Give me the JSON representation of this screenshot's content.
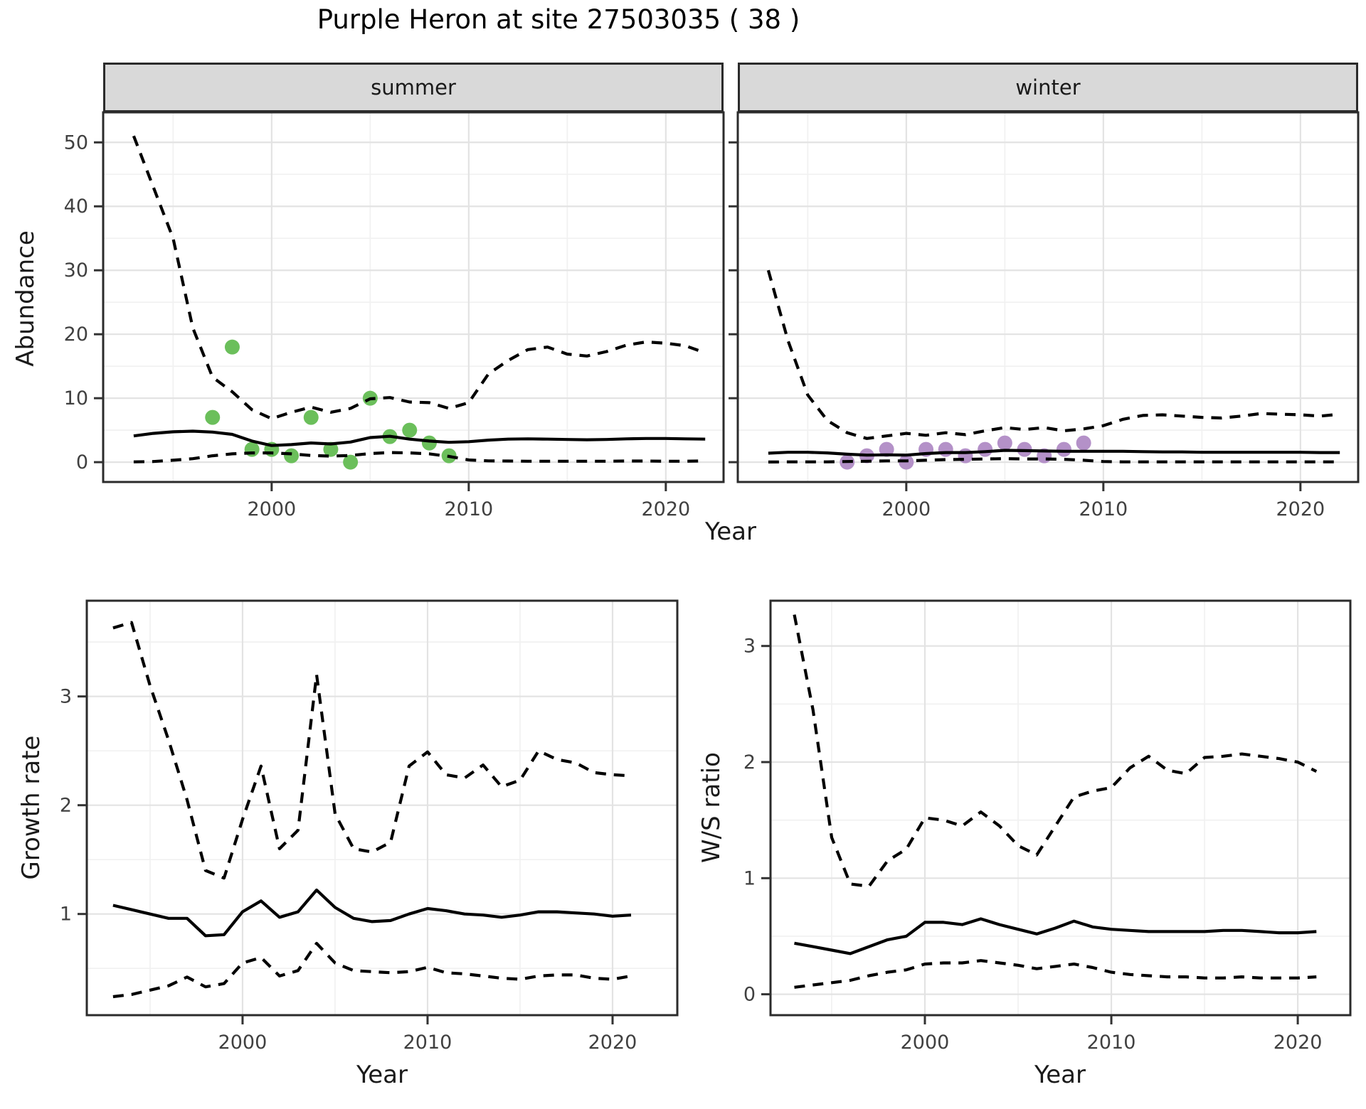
{
  "title": "Purple Heron at site 27503035 ( 38 )",
  "facets": [
    {
      "label": "summer"
    },
    {
      "label": "winter"
    }
  ],
  "axis_titles": {
    "abundance": "Abundance",
    "year": "Year",
    "growth_rate": "Growth rate",
    "ws_ratio": "W/S ratio"
  },
  "colors": {
    "summer_points": "#6bbf5b",
    "winter_points": "#b491c8",
    "line": "#000000",
    "panel_border": "#2b2b2b",
    "tick_mark": "#333333",
    "tick_text": "#404040",
    "grid_major": "#e3e3e3",
    "grid_minor": "#f1f1f1",
    "strip_fill": "#d9d9d9",
    "background": "#ffffff"
  },
  "chart_data": [
    {
      "id": "abundance_summer",
      "type": "line",
      "facet": "summer",
      "xlabel": "Year",
      "ylabel": "Abundance",
      "xlim": [
        1991.45,
        2022.93
      ],
      "ylim": [
        -3.1,
        54.7
      ],
      "xticks": [
        2000,
        2010,
        2020
      ],
      "xticks_minor": [
        1995,
        2005,
        2015
      ],
      "yticks": [
        0,
        10,
        20,
        30,
        40,
        50
      ],
      "yticks_minor": [
        5,
        15,
        25,
        35,
        45
      ],
      "grid": true,
      "legend": "none",
      "years": [
        1993,
        1994,
        1995,
        1996,
        1997,
        1998,
        1999,
        2000,
        2001,
        2002,
        2003,
        2004,
        2005,
        2006,
        2007,
        2008,
        2009,
        2010,
        2011,
        2012,
        2013,
        2014,
        2015,
        2016,
        2017,
        2018,
        2019,
        2020,
        2021,
        2022
      ],
      "series": [
        {
          "name": "upper_95ci",
          "style": "dashed",
          "values": [
            51,
            43,
            35,
            21,
            13.3,
            11,
            8.2,
            6.8,
            7.8,
            8.6,
            7.8,
            8.4,
            9.9,
            10.1,
            9.4,
            9.3,
            8.4,
            9.3,
            13.8,
            15.9,
            17.6,
            18,
            16.9,
            16.6,
            17.3,
            18.3,
            18.8,
            18.6,
            18.2,
            17.1
          ]
        },
        {
          "name": "median",
          "style": "solid",
          "values": [
            4.1,
            4.5,
            4.75,
            4.85,
            4.7,
            4.35,
            3.3,
            2.6,
            2.75,
            3.0,
            2.85,
            3.15,
            3.85,
            4.05,
            3.6,
            3.3,
            3.1,
            3.2,
            3.45,
            3.6,
            3.65,
            3.6,
            3.55,
            3.5,
            3.55,
            3.65,
            3.7,
            3.7,
            3.65,
            3.6
          ]
        },
        {
          "name": "lower_95ci",
          "style": "dashed",
          "values": [
            0.05,
            0.1,
            0.3,
            0.55,
            1.0,
            1.3,
            1.45,
            1.45,
            1.3,
            1.05,
            0.95,
            1.05,
            1.35,
            1.5,
            1.45,
            1.3,
            0.9,
            0.35,
            0.2,
            0.18,
            0.15,
            0.15,
            0.15,
            0.15,
            0.15,
            0.18,
            0.18,
            0.15,
            0.15,
            0.2
          ]
        }
      ],
      "points": {
        "name": "observed_summer_counts",
        "color": "#6bbf5b",
        "years": [
          1997,
          1998,
          1999,
          2000,
          2001,
          2002,
          2003,
          2004,
          2005,
          2006,
          2007,
          2008,
          2009
        ],
        "values": [
          7,
          18,
          2,
          2,
          1,
          7,
          2,
          0,
          10,
          4,
          5,
          3,
          1
        ]
      }
    },
    {
      "id": "abundance_winter",
      "type": "line",
      "facet": "winter",
      "xlabel": "Year",
      "ylabel": "Abundance",
      "xlim": [
        1991.45,
        2022.93
      ],
      "ylim": [
        -3.1,
        54.7
      ],
      "xticks": [
        2000,
        2010,
        2020
      ],
      "xticks_minor": [
        1995,
        2005,
        2015
      ],
      "yticks": [
        0,
        10,
        20,
        30,
        40,
        50
      ],
      "yticks_minor": [
        5,
        15,
        25,
        35,
        45
      ],
      "grid": true,
      "legend": "none",
      "show_y_labels": false,
      "years": [
        1993,
        1994,
        1995,
        1996,
        1997,
        1998,
        1999,
        2000,
        2001,
        2002,
        2003,
        2004,
        2005,
        2006,
        2007,
        2008,
        2009,
        2010,
        2011,
        2012,
        2013,
        2014,
        2015,
        2016,
        2017,
        2018,
        2019,
        2020,
        2021,
        2022
      ],
      "series": [
        {
          "name": "upper_95ci",
          "style": "dashed",
          "values": [
            30,
            19,
            10.5,
            6.5,
            4.6,
            3.7,
            4.1,
            4.5,
            4.2,
            4.6,
            4.3,
            4.9,
            5.4,
            5.1,
            5.4,
            4.9,
            5.2,
            5.7,
            6.7,
            7.3,
            7.4,
            7.2,
            7.0,
            6.9,
            7.2,
            7.6,
            7.5,
            7.4,
            7.2,
            7.5
          ]
        },
        {
          "name": "median",
          "style": "solid",
          "values": [
            1.4,
            1.55,
            1.55,
            1.45,
            1.25,
            1.1,
            1.15,
            1.1,
            1.35,
            1.5,
            1.5,
            1.65,
            1.85,
            1.8,
            1.75,
            1.7,
            1.7,
            1.7,
            1.7,
            1.65,
            1.6,
            1.6,
            1.55,
            1.55,
            1.55,
            1.55,
            1.55,
            1.55,
            1.5,
            1.5
          ]
        },
        {
          "name": "lower_95ci",
          "style": "dashed",
          "values": [
            0.02,
            0.05,
            0.05,
            0.05,
            0.1,
            0.15,
            0.2,
            0.2,
            0.3,
            0.4,
            0.45,
            0.5,
            0.55,
            0.5,
            0.5,
            0.45,
            0.3,
            0.1,
            0.05,
            0.05,
            0.05,
            0.05,
            0.05,
            0.05,
            0.05,
            0.05,
            0.05,
            0.05,
            0.05,
            0.05
          ]
        }
      ],
      "points": {
        "name": "observed_winter_counts",
        "color": "#b491c8",
        "years": [
          1997,
          1998,
          1999,
          2000,
          2001,
          2002,
          2003,
          2004,
          2005,
          2006,
          2007,
          2008,
          2009
        ],
        "values": [
          0,
          1,
          2,
          0,
          2,
          2,
          1,
          2,
          3,
          2,
          1,
          2,
          3
        ]
      }
    },
    {
      "id": "growth_rate",
      "type": "line",
      "xlabel": "Year",
      "ylabel": "Growth rate",
      "xlim": [
        1991.58,
        2023.5
      ],
      "ylim": [
        0.07,
        3.88
      ],
      "xticks": [
        2000,
        2010,
        2020
      ],
      "xticks_minor": [
        1995,
        2005,
        2015
      ],
      "yticks": [
        1,
        2,
        3
      ],
      "yticks_minor": [
        0.5,
        1.5,
        2.5,
        3.5
      ],
      "grid": true,
      "legend": "none",
      "years": [
        1993,
        1994,
        1995,
        1996,
        1997,
        1998,
        1999,
        2000,
        2001,
        2002,
        2003,
        2004,
        2005,
        2006,
        2007,
        2008,
        2009,
        2010,
        2011,
        2012,
        2013,
        2014,
        2015,
        2016,
        2017,
        2018,
        2019,
        2020,
        2021
      ],
      "series": [
        {
          "name": "upper_95ci",
          "style": "dashed",
          "values": [
            3.63,
            3.68,
            3.1,
            2.6,
            2.05,
            1.4,
            1.33,
            1.87,
            2.36,
            1.6,
            1.77,
            3.2,
            1.92,
            1.6,
            1.57,
            1.66,
            2.36,
            2.49,
            2.28,
            2.25,
            2.37,
            2.17,
            2.23,
            2.5,
            2.42,
            2.39,
            2.3,
            2.28,
            2.27
          ]
        },
        {
          "name": "median",
          "style": "solid",
          "values": [
            1.08,
            1.04,
            1.0,
            0.96,
            0.96,
            0.8,
            0.81,
            1.02,
            1.12,
            0.97,
            1.02,
            1.22,
            1.06,
            0.96,
            0.93,
            0.94,
            1.0,
            1.05,
            1.03,
            1.0,
            0.99,
            0.97,
            0.99,
            1.02,
            1.02,
            1.01,
            1.0,
            0.98,
            0.99
          ]
        },
        {
          "name": "lower_95ci",
          "style": "dashed",
          "values": [
            0.24,
            0.26,
            0.3,
            0.34,
            0.42,
            0.33,
            0.36,
            0.55,
            0.6,
            0.43,
            0.48,
            0.73,
            0.55,
            0.48,
            0.47,
            0.46,
            0.47,
            0.51,
            0.46,
            0.45,
            0.43,
            0.41,
            0.4,
            0.43,
            0.44,
            0.44,
            0.41,
            0.4,
            0.43
          ]
        }
      ]
    },
    {
      "id": "ws_ratio",
      "type": "line",
      "xlabel": "Year",
      "ylabel": "W/S ratio",
      "xlim": [
        1991.72,
        2022.82
      ],
      "ylim": [
        -0.18,
        3.39
      ],
      "xticks": [
        2000,
        2010,
        2020
      ],
      "xticks_minor": [
        1995,
        2005,
        2015
      ],
      "yticks": [
        0,
        1,
        2,
        3
      ],
      "yticks_minor": [
        0.5,
        1.5,
        2.5
      ],
      "grid": true,
      "legend": "none",
      "years": [
        1993,
        1994,
        1995,
        1996,
        1997,
        1998,
        1999,
        2000,
        2001,
        2002,
        2003,
        2004,
        2005,
        2006,
        2007,
        2008,
        2009,
        2010,
        2011,
        2012,
        2013,
        2014,
        2015,
        2016,
        2017,
        2018,
        2019,
        2020,
        2021
      ],
      "series": [
        {
          "name": "upper_95ci",
          "style": "dashed",
          "values": [
            3.27,
            2.45,
            1.35,
            0.95,
            0.93,
            1.15,
            1.25,
            1.52,
            1.5,
            1.45,
            1.57,
            1.45,
            1.28,
            1.2,
            1.45,
            1.7,
            1.75,
            1.78,
            1.95,
            2.05,
            1.93,
            1.9,
            2.04,
            2.05,
            2.07,
            2.05,
            2.03,
            2.0,
            1.92
          ]
        },
        {
          "name": "median",
          "style": "solid",
          "values": [
            0.44,
            0.41,
            0.38,
            0.35,
            0.41,
            0.47,
            0.5,
            0.62,
            0.62,
            0.6,
            0.65,
            0.6,
            0.56,
            0.52,
            0.57,
            0.63,
            0.58,
            0.56,
            0.55,
            0.54,
            0.54,
            0.54,
            0.54,
            0.55,
            0.55,
            0.54,
            0.53,
            0.53,
            0.54
          ]
        },
        {
          "name": "lower_95ci",
          "style": "dashed",
          "values": [
            0.06,
            0.08,
            0.1,
            0.12,
            0.16,
            0.19,
            0.21,
            0.26,
            0.27,
            0.27,
            0.29,
            0.27,
            0.25,
            0.22,
            0.24,
            0.26,
            0.23,
            0.19,
            0.17,
            0.16,
            0.15,
            0.15,
            0.14,
            0.14,
            0.15,
            0.14,
            0.14,
            0.14,
            0.15
          ]
        }
      ]
    }
  ]
}
